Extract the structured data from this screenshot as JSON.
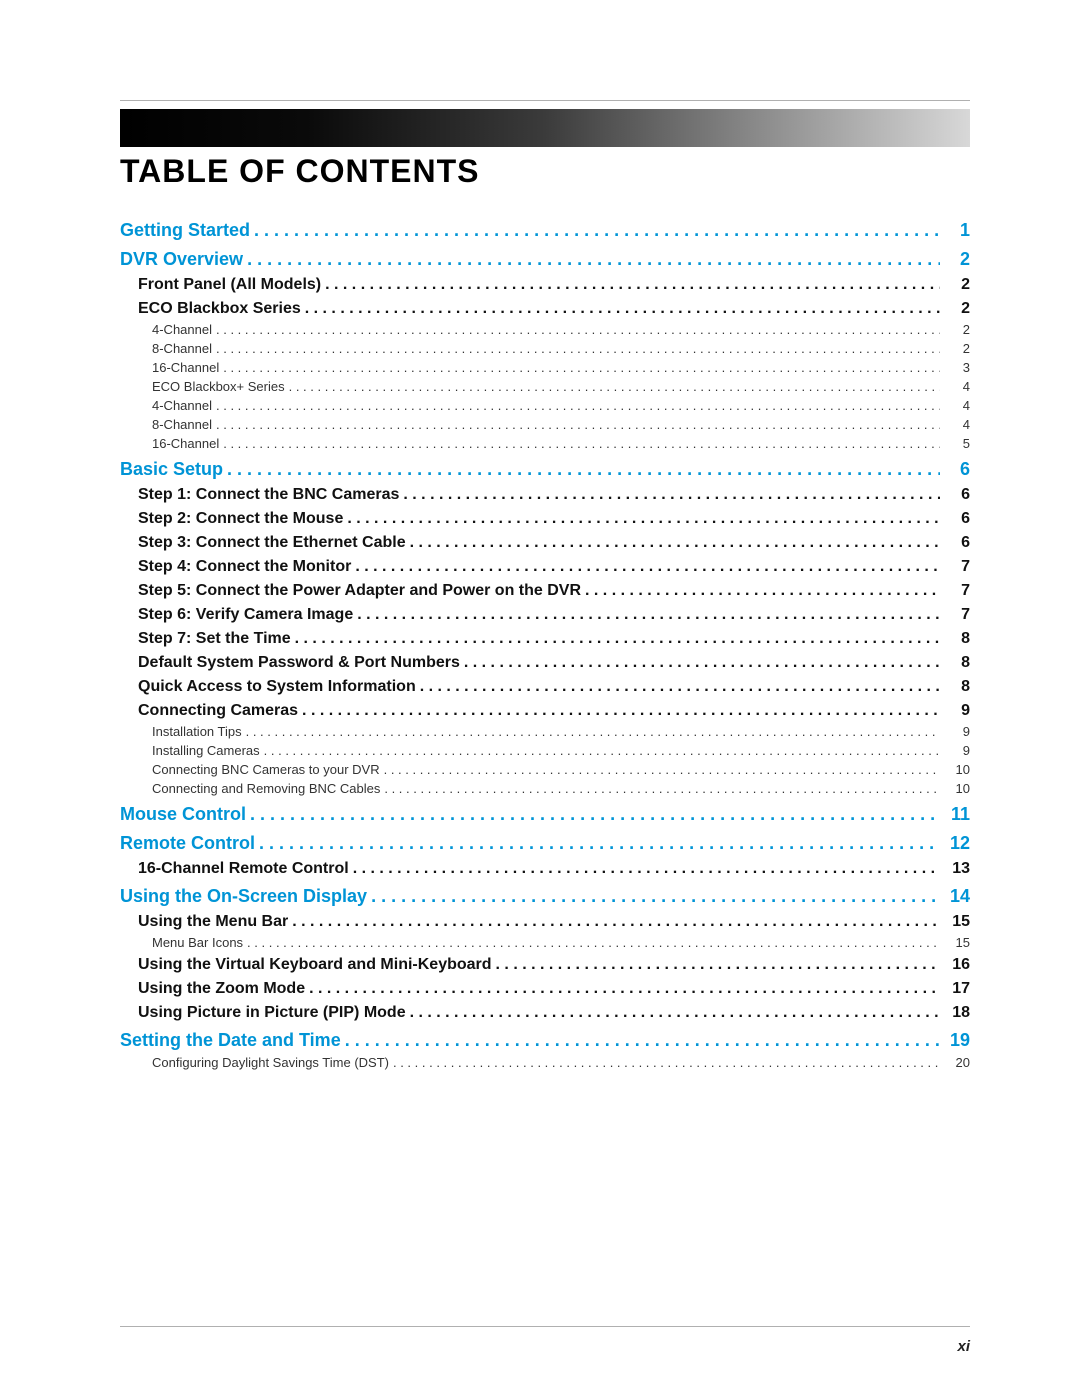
{
  "title": "TABLE OF CONTENTS",
  "page_number": "xi",
  "colors": {
    "chapter": "#0094d6",
    "section": "#111111",
    "sub": "#333333",
    "rule": "#b0b0b0",
    "bg": "#ffffff"
  },
  "entries": [
    {
      "level": "chapter",
      "label": "Getting Started",
      "page": "1"
    },
    {
      "level": "chapter",
      "label": "DVR Overview",
      "page": "2"
    },
    {
      "level": "section",
      "label": "Front Panel (All Models)",
      "page": "2"
    },
    {
      "level": "section",
      "label": "ECO Blackbox Series",
      "page": "2"
    },
    {
      "level": "sub",
      "label": "4-Channel",
      "page": "2"
    },
    {
      "level": "sub",
      "label": "8-Channel",
      "page": "2"
    },
    {
      "level": "sub",
      "label": "16-Channel",
      "page": "3"
    },
    {
      "level": "sub",
      "label": "ECO Blackbox+ Series",
      "page": "4"
    },
    {
      "level": "sub",
      "label": "4-Channel",
      "page": "4"
    },
    {
      "level": "sub",
      "label": "8-Channel",
      "page": "4"
    },
    {
      "level": "sub",
      "label": "16-Channel",
      "page": "5"
    },
    {
      "level": "chapter",
      "label": "Basic Setup",
      "page": "6"
    },
    {
      "level": "section",
      "label": "Step 1: Connect the BNC Cameras",
      "page": "6"
    },
    {
      "level": "section",
      "label": "Step 2: Connect the Mouse",
      "page": "6"
    },
    {
      "level": "section",
      "label": "Step 3: Connect the Ethernet Cable",
      "page": "6"
    },
    {
      "level": "section",
      "label": "Step 4: Connect the Monitor",
      "page": "7"
    },
    {
      "level": "section",
      "label": "Step 5: Connect the Power Adapter and Power on the DVR",
      "page": "7"
    },
    {
      "level": "section",
      "label": "Step 6: Verify Camera Image",
      "page": "7"
    },
    {
      "level": "section",
      "label": "Step 7: Set the Time",
      "page": "8"
    },
    {
      "level": "section",
      "label": "Default System Password & Port Numbers",
      "page": "8"
    },
    {
      "level": "section",
      "label": "Quick Access to System Information",
      "page": "8"
    },
    {
      "level": "section",
      "label": "Connecting Cameras",
      "page": "9"
    },
    {
      "level": "sub",
      "label": "Installation Tips",
      "page": "9"
    },
    {
      "level": "sub",
      "label": "Installing Cameras",
      "page": "9"
    },
    {
      "level": "sub",
      "label": "Connecting BNC Cameras to your DVR",
      "page": "10"
    },
    {
      "level": "sub",
      "label": "Connecting and Removing BNC Cables",
      "page": "10"
    },
    {
      "level": "chapter",
      "label": "Mouse Control",
      "page": "11"
    },
    {
      "level": "chapter",
      "label": "Remote Control",
      "page": "12"
    },
    {
      "level": "section",
      "label": "16-Channel Remote Control",
      "page": "13"
    },
    {
      "level": "chapter",
      "label": "Using the On-Screen Display",
      "page": "14"
    },
    {
      "level": "section",
      "label": "Using the Menu Bar",
      "page": "15"
    },
    {
      "level": "sub",
      "label": "Menu Bar Icons",
      "page": "15"
    },
    {
      "level": "section",
      "label": "Using the Virtual Keyboard and Mini-Keyboard",
      "page": "16"
    },
    {
      "level": "section",
      "label": "Using the Zoom Mode",
      "page": "17"
    },
    {
      "level": "section",
      "label": "Using Picture in Picture (PIP) Mode",
      "page": "18"
    },
    {
      "level": "chapter",
      "label": "Setting the Date and Time",
      "page": "19"
    },
    {
      "level": "sub",
      "label": "Configuring Daylight Savings Time (DST)",
      "page": "20"
    }
  ]
}
